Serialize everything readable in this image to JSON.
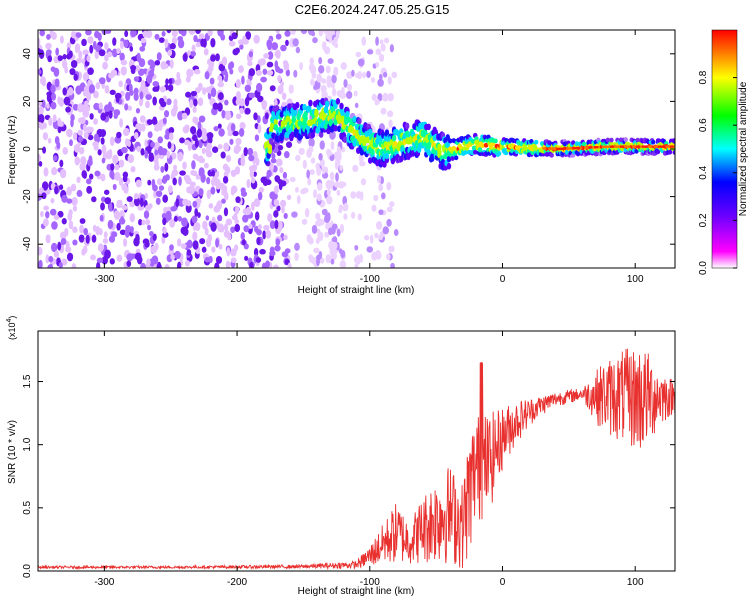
{
  "title": "C2E6.2024.247.05.25.G15",
  "colors": {
    "snr_line": "#e8302e",
    "axis": "#000000",
    "colormap": [
      "#ffffff",
      "#ff00ff",
      "#6a00ff",
      "#0000ff",
      "#00ffff",
      "#00ff00",
      "#ffff00",
      "#ff0000"
    ]
  },
  "chart_data": [
    {
      "type": "heatmap",
      "title": "C2E6.2024.247.05.25.G15",
      "xlabel": "Height of straight line (km)",
      "ylabel": "Frequency (Hz)",
      "xlim": [
        -350,
        130
      ],
      "ylim": [
        -50,
        50
      ],
      "x_ticks": [
        -300,
        -200,
        -100,
        0,
        100
      ],
      "y_ticks": [
        -40,
        -20,
        0,
        20,
        40
      ],
      "colorbar": {
        "label": "Normalized spectral amplitude",
        "range": [
          0,
          1
        ],
        "ticks": [
          "0.0",
          "0.2",
          "0.4",
          "0.6",
          "0.8"
        ]
      },
      "features": {
        "noise_region_x": [
          -350,
          -110
        ],
        "signal_center_hz": [
          [
            -175,
            10
          ],
          [
            -150,
            12
          ],
          [
            -125,
            14
          ],
          [
            -110,
            6
          ],
          [
            -100,
            2
          ],
          [
            -90,
            0
          ],
          [
            -75,
            3
          ],
          [
            -60,
            5
          ],
          [
            -45,
            -1
          ],
          [
            -35,
            0
          ],
          [
            -20,
            2
          ],
          [
            0,
            1
          ],
          [
            40,
            0
          ],
          [
            80,
            1
          ],
          [
            130,
            1
          ]
        ]
      }
    },
    {
      "type": "line",
      "xlabel": "Height of straight line (km)",
      "ylabel": "SNR (10 * v/v)",
      "y_multiplier": "(x10^4)",
      "xlim": [
        -350,
        130
      ],
      "ylim": [
        0,
        1.9
      ],
      "x_ticks": [
        -300,
        -200,
        -100,
        0,
        100
      ],
      "y_ticks": [
        "0.0",
        "0.5",
        "1.0",
        "1.5"
      ],
      "envelope": [
        [
          -350,
          0.02,
          0.04
        ],
        [
          -250,
          0.02,
          0.04
        ],
        [
          -150,
          0.02,
          0.05
        ],
        [
          -110,
          0.02,
          0.08
        ],
        [
          -100,
          0.03,
          0.2
        ],
        [
          -80,
          0.05,
          0.55
        ],
        [
          -70,
          0.05,
          0.4
        ],
        [
          -60,
          0.05,
          0.6
        ],
        [
          -50,
          0.05,
          0.75
        ],
        [
          -40,
          0.05,
          0.85
        ],
        [
          -30,
          0.0,
          0.7
        ],
        [
          -25,
          0.1,
          1.1
        ],
        [
          -20,
          0.35,
          1.25
        ],
        [
          -10,
          0.45,
          1.25
        ],
        [
          0,
          0.8,
          1.3
        ],
        [
          10,
          1.0,
          1.35
        ],
        [
          25,
          1.2,
          1.38
        ],
        [
          40,
          1.3,
          1.42
        ],
        [
          60,
          1.35,
          1.45
        ],
        [
          75,
          1.1,
          1.65
        ],
        [
          90,
          1.0,
          1.75
        ],
        [
          105,
          0.9,
          1.8
        ],
        [
          120,
          1.15,
          1.6
        ],
        [
          130,
          1.25,
          1.5
        ]
      ]
    }
  ]
}
